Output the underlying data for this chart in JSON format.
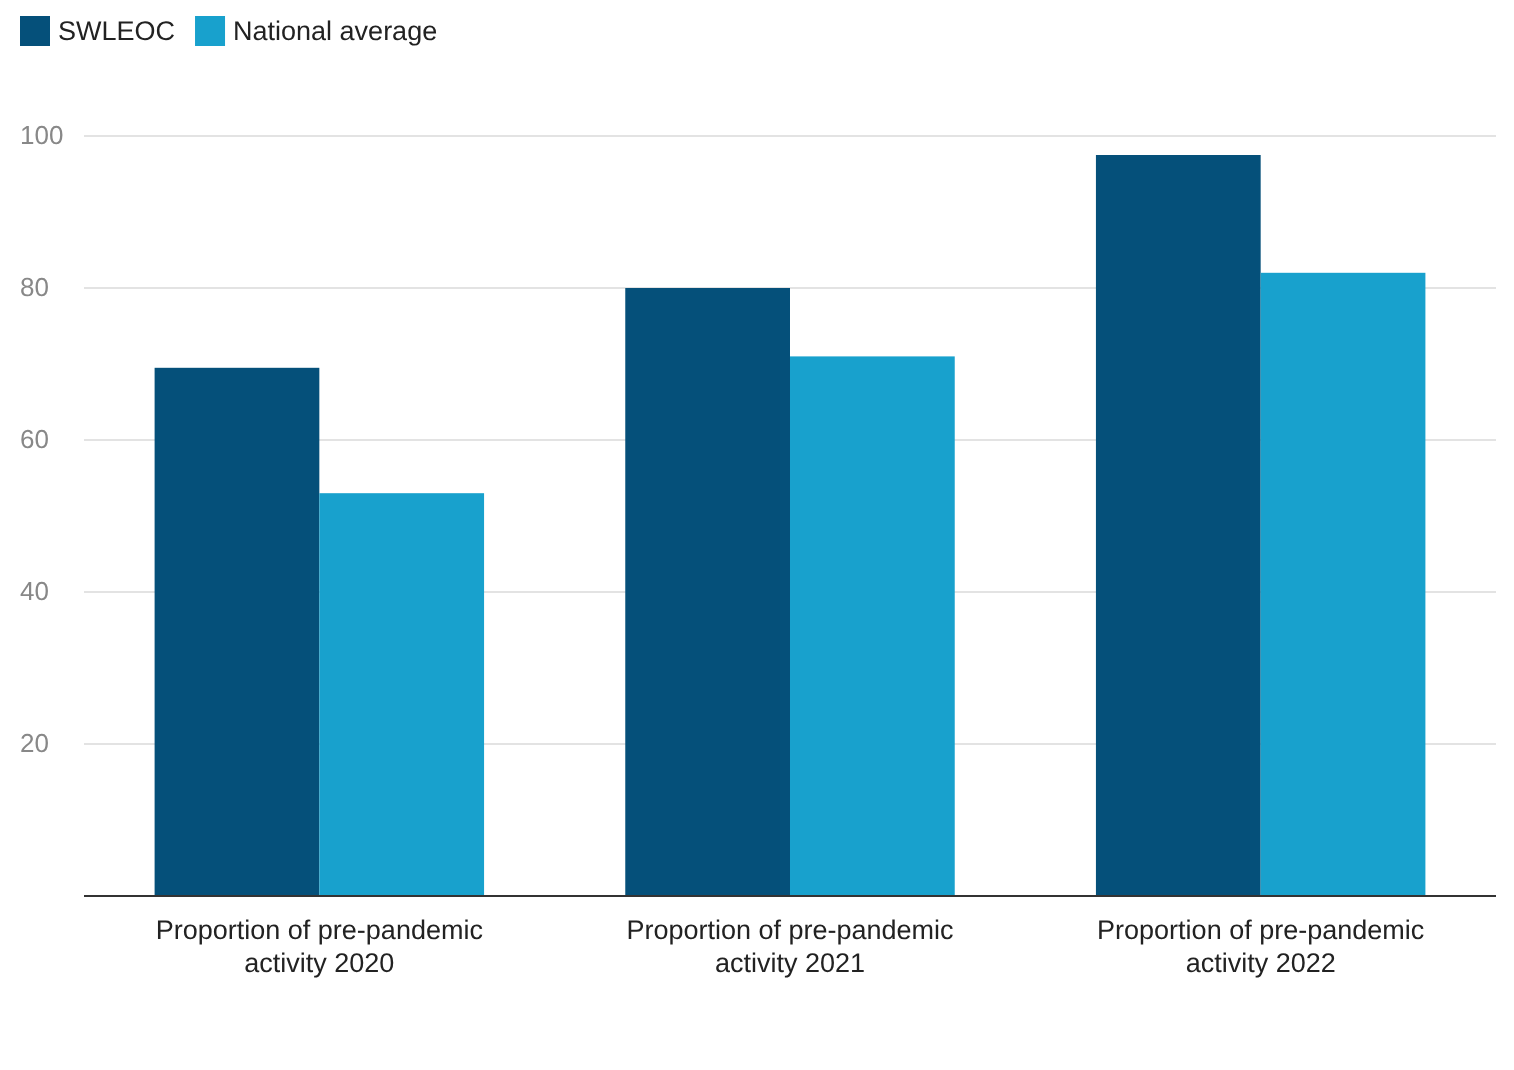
{
  "chart_data": {
    "type": "bar",
    "categories": [
      "Proportion of pre-pandemic activity 2020",
      "Proportion of pre-pandemic activity 2021",
      "Proportion of pre-pandemic activity 2022"
    ],
    "series": [
      {
        "name": "SWLEOC",
        "color": "#05507a",
        "values": [
          69.5,
          80,
          97.5
        ]
      },
      {
        "name": "National average",
        "color": "#18a1cd",
        "values": [
          53,
          71,
          82
        ]
      }
    ],
    "ylim": [
      0,
      100
    ],
    "yticks": [
      20,
      40,
      60,
      80,
      100
    ],
    "grid": "y",
    "legend": "top left"
  }
}
